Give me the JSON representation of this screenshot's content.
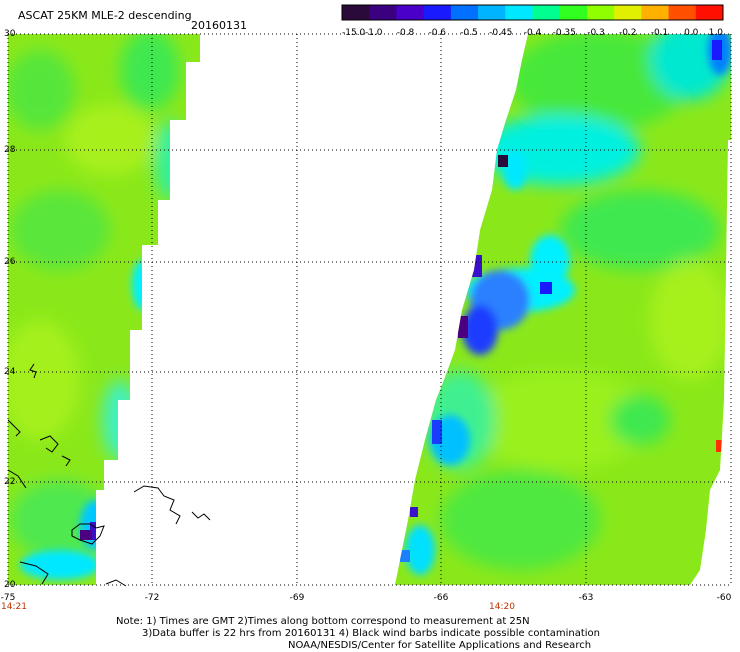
{
  "header": {
    "title": "ASCAT 25KM MLE-2 descending",
    "date": "20160131"
  },
  "legend": {
    "labels": [
      "-15.0",
      "-1.0",
      "-0.8",
      "-0.6",
      "-0.5",
      "-0.45",
      "-0.4",
      "-0.35",
      "-0.3",
      "-0.2",
      "-0.1",
      "0.0",
      "1.0"
    ],
    "colors": [
      "#2a0a3a",
      "#3a0080",
      "#4a00c8",
      "#1a1aff",
      "#0070ff",
      "#00b4ff",
      "#00e8ff",
      "#00ff90",
      "#30ff20",
      "#90ff00",
      "#e0f000",
      "#ffb000",
      "#ff5000",
      "#ff1000"
    ]
  },
  "map": {
    "lat_labels": [
      "30",
      "28",
      "26",
      "24",
      "22",
      "20"
    ],
    "lon_labels": [
      "-75",
      "-72",
      "-69",
      "-66",
      "-63",
      "-60"
    ],
    "times": [
      "14:21",
      "14:20"
    ],
    "colors": {
      "grid": "#000000",
      "time_text": "#c03000",
      "base_green": "#8ae81a",
      "light_green": "#a6f01a",
      "mid_green": "#46e83a",
      "cyan": "#00f0ff",
      "sky": "#00c0ff",
      "blue": "#1a3cff",
      "deep_blue": "#3a10c8",
      "purple": "#4a0080"
    }
  },
  "footer": {
    "line1": "Note: 1) Times are GMT 2)Times along bottom correspond to measurement at 25N",
    "line2": "3)Data buffer is 22 hrs from 20160131 4) Black wind barbs indicate possible contamination",
    "line3": "NOAA/NESDIS/Center for Satellite Applications and Research"
  }
}
